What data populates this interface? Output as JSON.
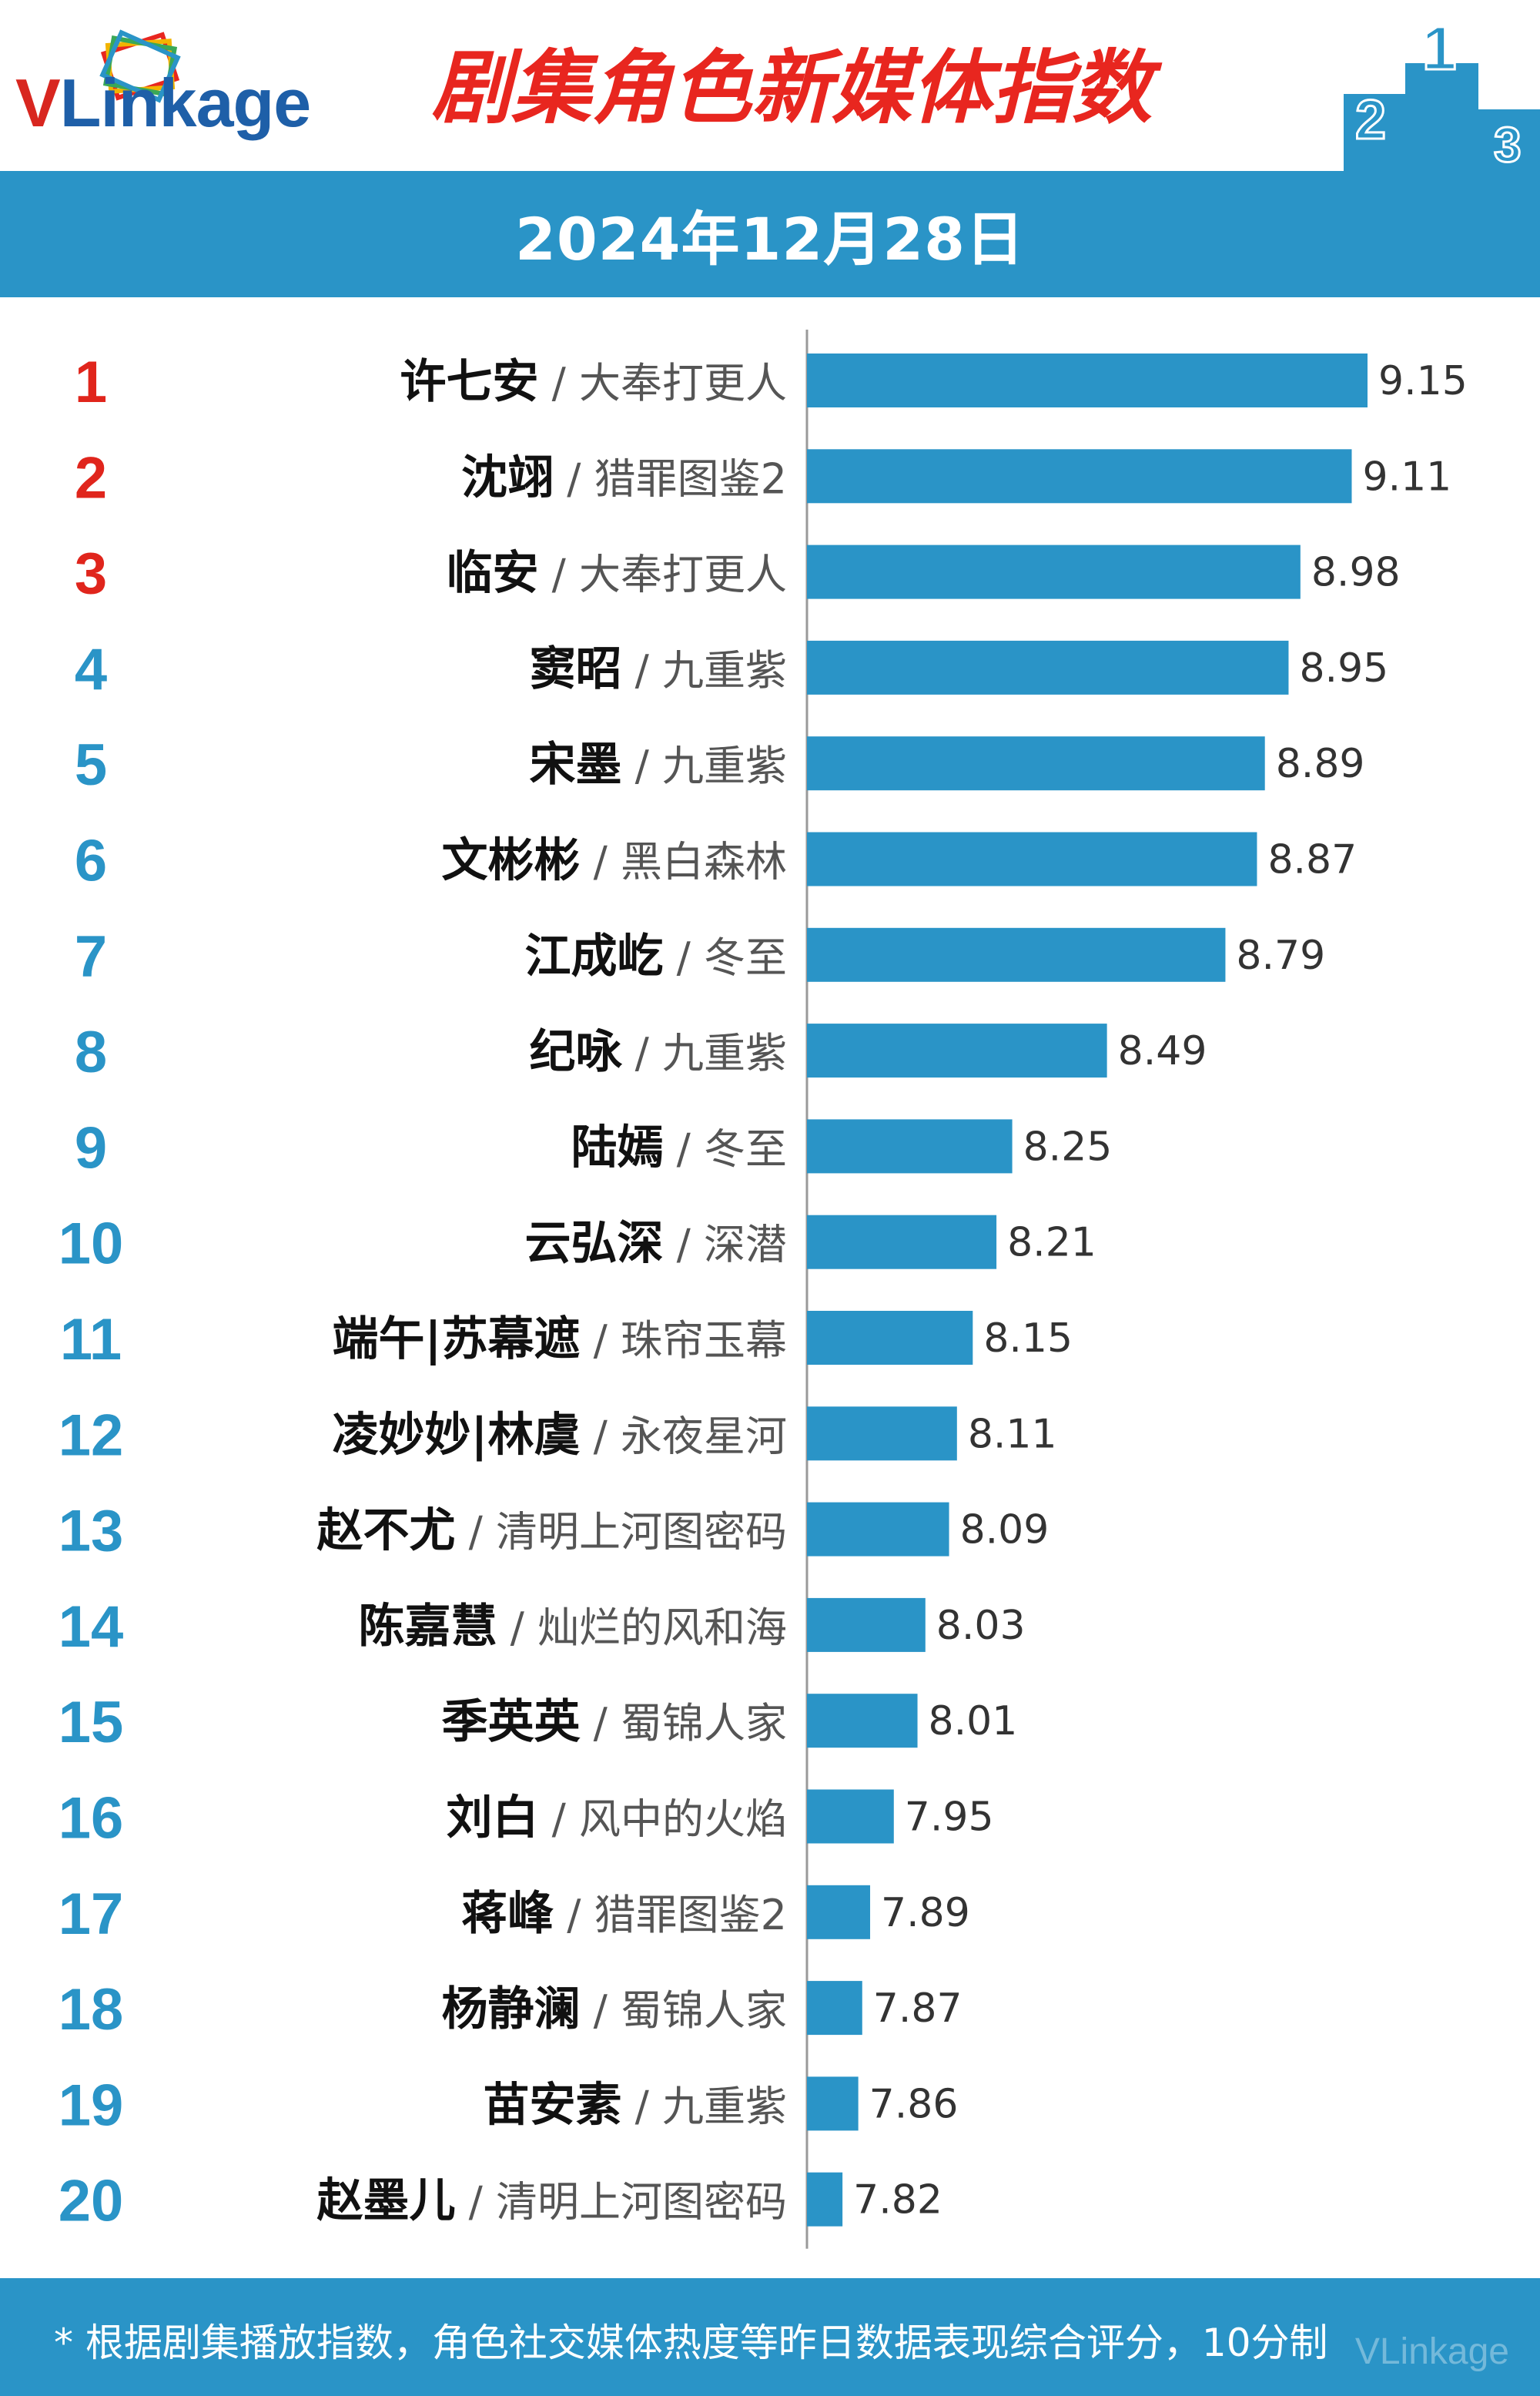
{
  "header": {
    "logo_v": "V",
    "logo_rest": "Linkage",
    "title": "剧集角色新媒体指数",
    "podium_numbers": [
      "2",
      "1",
      "3"
    ]
  },
  "date": "2024年12月28日",
  "colors": {
    "bar": "#2a94c7",
    "rank_top3": "#e0251c",
    "rank_other": "#2a94c7",
    "accent_title": "#e8261f"
  },
  "chart_data": {
    "type": "bar",
    "orientation": "horizontal",
    "ranks": [
      "1",
      "2",
      "3",
      "4",
      "5",
      "6",
      "7",
      "8",
      "9",
      "10",
      "11",
      "12",
      "13",
      "14",
      "15",
      "16",
      "17",
      "18",
      "19",
      "20"
    ],
    "names": [
      "许七安",
      "沈翊",
      "临安",
      "窦昭",
      "宋墨",
      "文彬彬",
      "江成屹",
      "纪咏",
      "陆嫣",
      "云弘深",
      "端午|苏幕遮",
      "凌妙妙|林虞",
      "赵不尤",
      "陈嘉慧",
      "季英英",
      "刘白",
      "蒋峰",
      "杨静澜",
      "苗安素",
      "赵墨儿"
    ],
    "dramas": [
      "大奉打更人",
      "猎罪图鉴2",
      "大奉打更人",
      "九重紫",
      "九重紫",
      "黑白森林",
      "冬至",
      "九重紫",
      "冬至",
      "深潜",
      "珠帘玉幕",
      "永夜星河",
      "清明上河图密码",
      "灿烂的风和海",
      "蜀锦人家",
      "风中的火焰",
      "猎罪图鉴2",
      "蜀锦人家",
      "九重紫",
      "清明上河图密码"
    ],
    "values": [
      9.15,
      9.11,
      8.98,
      8.95,
      8.89,
      8.87,
      8.79,
      8.49,
      8.25,
      8.21,
      8.15,
      8.11,
      8.09,
      8.03,
      8.01,
      7.95,
      7.89,
      7.87,
      7.86,
      7.82
    ],
    "value_labels": [
      "9.15",
      "9.11",
      "8.98",
      "8.95",
      "8.89",
      "8.87",
      "8.79",
      "8.49",
      "8.25",
      "8.21",
      "8.15",
      "8.11",
      "8.09",
      "8.03",
      "8.01",
      "7.95",
      "7.89",
      "7.87",
      "7.86",
      "7.82"
    ],
    "xlim": [
      7.73,
      9.15
    ]
  },
  "footer": {
    "note": "* 根据剧集播放指数，角色社交媒体热度等昨日数据表现综合评分，10分制",
    "watermark": "VLinkage"
  }
}
